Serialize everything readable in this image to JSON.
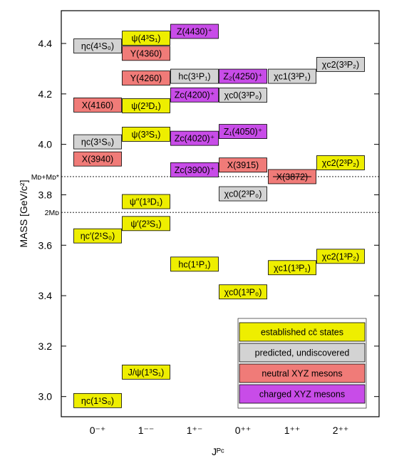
{
  "chart_data": {
    "type": "level-diagram",
    "ylabel": "MASS  [GeV/c²]",
    "xlabel": "Jᴾᶜ",
    "ylim": [
      2.92,
      4.53
    ],
    "yticks": [
      "3.0",
      "3.2",
      "3.4",
      "3.6",
      "3.8",
      "4.0",
      "4.2",
      "4.4"
    ],
    "categories": [
      "0⁻⁺",
      "1⁻⁻",
      "1⁺⁻",
      "0⁺⁺",
      "1⁺⁺",
      "2⁺⁺"
    ],
    "thresholds": [
      {
        "label": "Mᴅ+Mᴅ*",
        "mass": 3.872
      },
      {
        "label": "2Mᴅ",
        "mass": 3.73
      }
    ],
    "state_colors": {
      "established": "#eeee00",
      "predicted": "#d3d3d3",
      "neutral": "#f07b78",
      "charged": "#c84ce8"
    },
    "states": [
      {
        "label": "ηc(1¹S₀)",
        "col": 0,
        "mass": 2.984,
        "kind": "established"
      },
      {
        "label": "ηc′(2¹S₀)",
        "col": 0,
        "mass": 3.637,
        "kind": "established"
      },
      {
        "label": "X(3940)",
        "col": 0,
        "mass": 3.942,
        "kind": "neutral"
      },
      {
        "label": "ηc(3¹S₀)",
        "col": 0,
        "mass": 4.01,
        "kind": "predicted"
      },
      {
        "label": "X(4160)",
        "col": 0,
        "mass": 4.156,
        "kind": "neutral"
      },
      {
        "label": "ηc(4¹S₀)",
        "col": 0,
        "mass": 4.39,
        "kind": "predicted"
      },
      {
        "label": "J/ψ(1³S₁)",
        "col": 1,
        "mass": 3.097,
        "kind": "established"
      },
      {
        "label": "ψ′(2³S₁)",
        "col": 1,
        "mass": 3.686,
        "kind": "established"
      },
      {
        "label": "ψ′′(1³D₁)",
        "col": 1,
        "mass": 3.773,
        "kind": "established"
      },
      {
        "label": "ψ(3³S₁)",
        "col": 1,
        "mass": 4.04,
        "kind": "established"
      },
      {
        "label": "ψ(2³D₁)",
        "col": 1,
        "mass": 4.153,
        "kind": "established"
      },
      {
        "label": "Y(4260)",
        "col": 1,
        "mass": 4.263,
        "kind": "neutral"
      },
      {
        "label": "Y(4360)",
        "col": 1,
        "mass": 4.361,
        "kind": "neutral"
      },
      {
        "label": "ψ(4³S₁)",
        "col": 1,
        "mass": 4.421,
        "kind": "established"
      },
      {
        "label": "hc(1¹P₁)",
        "col": 2,
        "mass": 3.525,
        "kind": "established"
      },
      {
        "label": "Zc(3900)⁺",
        "col": 2,
        "mass": 3.899,
        "kind": "charged"
      },
      {
        "label": "Zc(4020)⁺",
        "col": 2,
        "mass": 4.024,
        "kind": "charged"
      },
      {
        "label": "Zc(4200)⁺",
        "col": 2,
        "mass": 4.196,
        "kind": "charged"
      },
      {
        "label": "hc(3¹P₁)",
        "col": 2,
        "mass": 4.27,
        "kind": "predicted"
      },
      {
        "label": "Z(4430)⁺",
        "col": 2,
        "mass": 4.448,
        "kind": "charged"
      },
      {
        "label": "χc0(1³P₀)",
        "col": 3,
        "mass": 3.415,
        "kind": "established"
      },
      {
        "label": "χc0(2³P₀)",
        "col": 3,
        "mass": 3.804,
        "kind": "predicted"
      },
      {
        "label": "X(3915)",
        "col": 3,
        "mass": 3.918,
        "kind": "neutral"
      },
      {
        "label": "Z₁(4050)⁺",
        "col": 3,
        "mass": 4.051,
        "kind": "charged"
      },
      {
        "label": "χc0(3³P₀)",
        "col": 3,
        "mass": 4.195,
        "kind": "predicted"
      },
      {
        "label": "Z₂(4250)⁺",
        "col": 3,
        "mass": 4.27,
        "kind": "charged"
      },
      {
        "label": "χc1(1³P₁)",
        "col": 4,
        "mass": 3.511,
        "kind": "established"
      },
      {
        "label": "X(3872)",
        "col": 4,
        "mass": 3.872,
        "kind": "neutral",
        "struck": true
      },
      {
        "label": "χc1(3³P₁)",
        "col": 4,
        "mass": 4.27,
        "kind": "predicted"
      },
      {
        "label": "χc2(1³P₂)",
        "col": 5,
        "mass": 3.556,
        "kind": "established"
      },
      {
        "label": "χc2(2³P₂)",
        "col": 5,
        "mass": 3.927,
        "kind": "established"
      },
      {
        "label": "χc2(3³P₂)",
        "col": 5,
        "mass": 4.317,
        "kind": "predicted"
      }
    ],
    "legend": [
      {
        "label": "established cc̄ states",
        "kind": "established"
      },
      {
        "label": "predicted, undiscovered",
        "kind": "predicted"
      },
      {
        "label": "neutral XYZ mesons",
        "kind": "neutral"
      },
      {
        "label": "charged XYZ mesons",
        "kind": "charged"
      }
    ]
  }
}
